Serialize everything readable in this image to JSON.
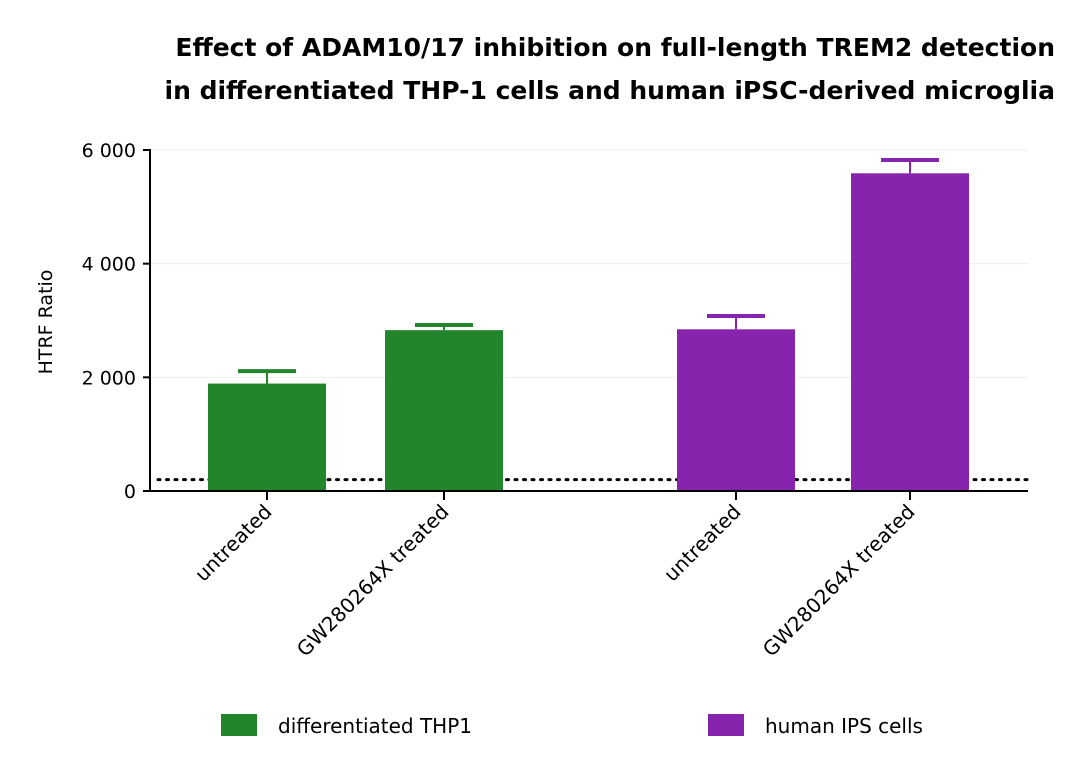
{
  "chart_data": {
    "type": "bar",
    "title": [
      "Effect of ADAM10/17 inhibition on full-length TREM2 detection",
      "in differentiated THP-1 cells and human iPSC-derived microglia"
    ],
    "ylabel": "HTRF Ratio",
    "xlabel": "",
    "ylim": [
      0,
      6000
    ],
    "yticks": [
      0,
      2000,
      4000,
      6000
    ],
    "ytick_labels": [
      "0",
      "2 000",
      "4 000",
      "6 000"
    ],
    "grid": "horizontal",
    "legend_position": "bottom",
    "reference_line": {
      "y": 200,
      "style": "dotted"
    },
    "groups": [
      {
        "name": "differentiated THP1",
        "color": "#22852b",
        "categories": [
          "untreated",
          "GW280264X treated"
        ],
        "values": [
          1890,
          2830
        ],
        "error_upper": [
          2110,
          2920
        ]
      },
      {
        "name": "human IPS cells",
        "color": "#8624ae",
        "categories": [
          "untreated",
          "GW280264X treated"
        ],
        "values": [
          2845,
          5590
        ],
        "error_upper": [
          3080,
          5825
        ]
      }
    ]
  }
}
